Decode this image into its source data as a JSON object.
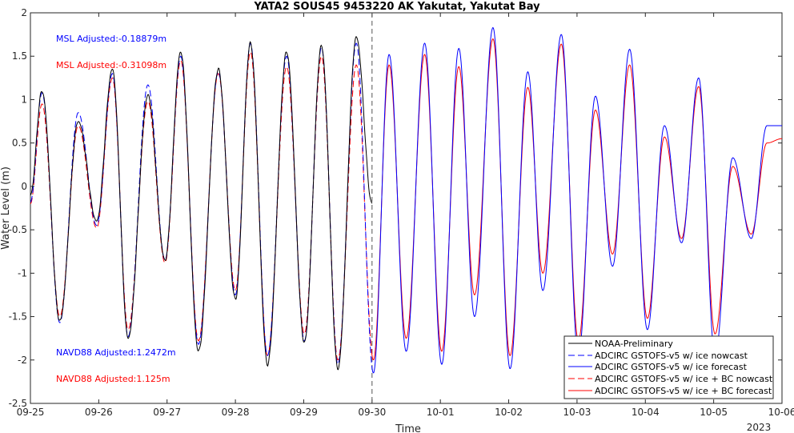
{
  "chart_data": {
    "type": "line",
    "title": "YATA2 SOUS45 9453220 AK Yakutat, Yakutat Bay",
    "xlabel": "Time",
    "ylabel": "Water Level (m)",
    "ylim": [
      -2.5,
      2
    ],
    "y_ticks": [
      "2",
      "1.5",
      "1",
      "0.5",
      "0",
      "-0.5",
      "-1",
      "-1.5",
      "-2",
      "-2.5"
    ],
    "x_ticks": [
      "09-25",
      "09-26",
      "09-27",
      "09-28",
      "09-29",
      "09-30",
      "10-01",
      "10-02",
      "10-03",
      "10-04",
      "10-05",
      "10-06"
    ],
    "x_year_label": "2023",
    "nowcast_forecast_divider": "09-30",
    "annotations": [
      {
        "text": "MSL Adjusted:-0.18879m",
        "color": "#0000ff"
      },
      {
        "text": "MSL Adjusted:-0.31098m",
        "color": "#ff0000"
      },
      {
        "text": "NAVD88 Adjusted:1.2472m",
        "color": "#0000ff"
      },
      {
        "text": "NAVD88 Adjusted:1.125m",
        "color": "#ff0000"
      }
    ],
    "legend_position": "bottom-right",
    "series": [
      {
        "name": "NOAA-Preliminary",
        "color": "#000000",
        "style": "solid",
        "days": 5
      },
      {
        "name": "ADCIRC GSTOFS-v5 w/ ice nowcast",
        "color": "#0000ff",
        "style": "dashed",
        "days": 5
      },
      {
        "name": "ADCIRC GSTOFS-v5 w/ ice forecast",
        "color": "#0000ff",
        "style": "solid",
        "days": 6
      },
      {
        "name": "ADCIRC GSTOFS-v5 w/ ice + BC nowcast",
        "color": "#ff0000",
        "style": "dashed",
        "days": 5
      },
      {
        "name": "ADCIRC GSTOFS-v5 w/ ice + BC forecast",
        "color": "#ff0000",
        "style": "solid",
        "days": 6
      }
    ],
    "extrema": {
      "observed_days": [
        0.0,
        0.17,
        0.43,
        0.7,
        0.97,
        1.2,
        1.43,
        1.72,
        1.97,
        2.2,
        2.46,
        2.75,
        3.0,
        3.22,
        3.47,
        3.75,
        4.01,
        4.26,
        4.5,
        4.77,
        5.0
      ],
      "observed_values": [
        -0.1,
        1.1,
        -1.55,
        0.75,
        -0.4,
        1.35,
        -1.75,
        1.05,
        -0.85,
        1.55,
        -1.9,
        1.35,
        -1.3,
        1.65,
        -2.05,
        1.55,
        -1.8,
        1.62,
        -2.1,
        1.72,
        -0.2
      ],
      "blue_days": [
        0.0,
        0.17,
        0.43,
        0.7,
        0.97,
        1.2,
        1.43,
        1.72,
        1.97,
        2.2,
        2.46,
        2.75,
        3.0,
        3.22,
        3.47,
        3.75,
        4.01,
        4.26,
        4.5,
        4.77,
        5.02,
        5.25,
        5.5,
        5.77,
        6.02,
        6.27,
        6.5,
        6.77,
        7.02,
        7.28,
        7.5,
        7.77,
        8.02,
        8.27,
        8.52,
        8.77,
        9.03,
        9.28,
        9.53,
        9.78,
        10.02,
        10.28,
        10.55,
        10.78,
        11.0
      ],
      "blue_values": [
        -0.18,
        1.08,
        -1.57,
        0.85,
        -0.45,
        1.3,
        -1.73,
        1.17,
        -0.85,
        1.5,
        -1.82,
        1.32,
        -1.25,
        1.65,
        -1.95,
        1.5,
        -1.78,
        1.6,
        -2.05,
        1.65,
        -2.15,
        1.52,
        -1.9,
        1.65,
        -2.05,
        1.59,
        -1.5,
        1.83,
        -2.1,
        1.32,
        -1.2,
        1.75,
        -1.95,
        1.04,
        -0.92,
        1.58,
        -1.65,
        0.7,
        -0.65,
        1.25,
        -1.95,
        0.33,
        -0.6,
        0.7,
        0.7
      ],
      "red_days": [
        0.0,
        0.17,
        0.43,
        0.7,
        0.97,
        1.2,
        1.43,
        1.72,
        1.97,
        2.2,
        2.46,
        2.75,
        3.0,
        3.22,
        3.47,
        3.75,
        4.01,
        4.26,
        4.5,
        4.77,
        5.02,
        5.25,
        5.5,
        5.77,
        6.02,
        6.27,
        6.5,
        6.77,
        7.02,
        7.28,
        7.5,
        7.77,
        8.02,
        8.27,
        8.52,
        8.77,
        9.03,
        9.28,
        9.53,
        9.78,
        10.02,
        10.28,
        10.55,
        10.78,
        11.0
      ],
      "red_values": [
        -0.2,
        0.95,
        -1.5,
        0.7,
        -0.48,
        1.25,
        -1.65,
        0.98,
        -0.88,
        1.45,
        -1.78,
        1.3,
        -1.2,
        1.55,
        -1.95,
        1.38,
        -1.7,
        1.5,
        -2.0,
        1.4,
        -2.0,
        1.4,
        -1.75,
        1.52,
        -1.9,
        1.38,
        -1.25,
        1.7,
        -1.95,
        1.14,
        -1.0,
        1.64,
        -1.78,
        0.88,
        -0.78,
        1.4,
        -1.52,
        0.57,
        -0.6,
        1.15,
        -1.7,
        0.23,
        -0.55,
        0.5,
        0.55
      ]
    }
  }
}
